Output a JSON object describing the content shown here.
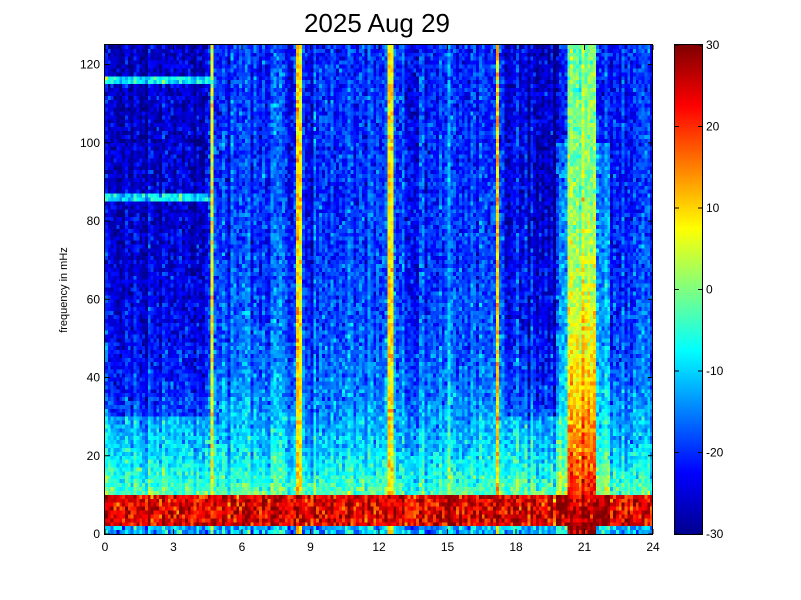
{
  "chart_data": {
    "type": "heatmap",
    "title": "2025 Aug 29",
    "xlabel": "",
    "ylabel": "frequency in mHz",
    "xlim": [
      0,
      24
    ],
    "ylim": [
      0,
      125
    ],
    "xticks": [
      0,
      3,
      6,
      9,
      12,
      15,
      18,
      21,
      24
    ],
    "yticks": [
      0,
      20,
      40,
      60,
      80,
      100,
      120
    ],
    "colorbar": {
      "colormap": "jet",
      "clim": [
        -30,
        30
      ],
      "ticks": [
        30,
        20,
        10,
        0,
        -10,
        -20,
        -30
      ]
    },
    "grid_resolution": {
      "x_cells": 192,
      "y_cells": 125
    },
    "features": {
      "low_frequency_band_mhz": [
        2,
        10
      ],
      "low_frequency_band_level": 28,
      "quiet_background_level": -20,
      "event_hours": [
        20.2,
        21.5
      ],
      "event_peak_level": 30,
      "bright_vertical_lines_hours": [
        8.5,
        12.5,
        17.2,
        4.7
      ],
      "horizontal_lines_mhz": [
        116,
        86
      ]
    }
  }
}
